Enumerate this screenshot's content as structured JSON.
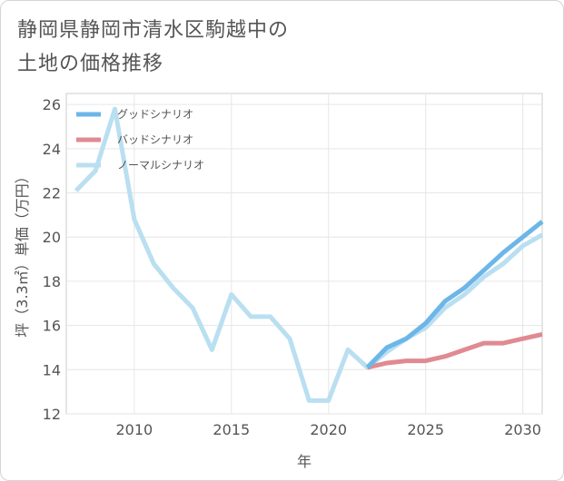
{
  "title_lines": [
    "静岡県静岡市清水区駒越中の",
    "土地の価格推移"
  ],
  "chart_data": {
    "type": "line",
    "xlabel": "年",
    "ylabel": "坪（3.3㎡）単価（万円）",
    "xlim": [
      2006.5,
      2031
    ],
    "ylim": [
      12,
      26.5
    ],
    "x_ticks": [
      2010,
      2015,
      2020,
      2025,
      2030
    ],
    "y_ticks": [
      12,
      14,
      16,
      18,
      20,
      22,
      24,
      26
    ],
    "grid": true,
    "legend_position": "top-left",
    "series": [
      {
        "name": "グッドシナリオ",
        "color": "#6cb6e8",
        "x": [
          2022,
          2023,
          2024,
          2025,
          2026,
          2027,
          2028,
          2029,
          2030,
          2031
        ],
        "y": [
          14.1,
          15.0,
          15.4,
          16.1,
          17.1,
          17.7,
          18.5,
          19.3,
          20.0,
          20.7
        ]
      },
      {
        "name": "バッドシナリオ",
        "color": "#e08a92",
        "x": [
          2022,
          2023,
          2024,
          2025,
          2026,
          2027,
          2028,
          2029,
          2030,
          2031
        ],
        "y": [
          14.1,
          14.3,
          14.4,
          14.4,
          14.6,
          14.9,
          15.2,
          15.2,
          15.4,
          15.6
        ]
      },
      {
        "name": "ノーマルシナリオ",
        "color": "#b9dff1",
        "x": [
          2007,
          2008,
          2009,
          2010,
          2011,
          2012,
          2013,
          2014,
          2015,
          2016,
          2017,
          2018,
          2019,
          2020,
          2021,
          2022,
          2023,
          2024,
          2025,
          2026,
          2027,
          2028,
          2029,
          2030,
          2031
        ],
        "y": [
          22.1,
          23.0,
          25.8,
          20.8,
          18.8,
          17.7,
          16.8,
          14.9,
          17.4,
          16.4,
          16.4,
          15.4,
          12.6,
          12.6,
          14.9,
          14.1,
          14.8,
          15.4,
          15.9,
          16.8,
          17.4,
          18.2,
          18.8,
          19.6,
          20.1
        ]
      }
    ]
  }
}
